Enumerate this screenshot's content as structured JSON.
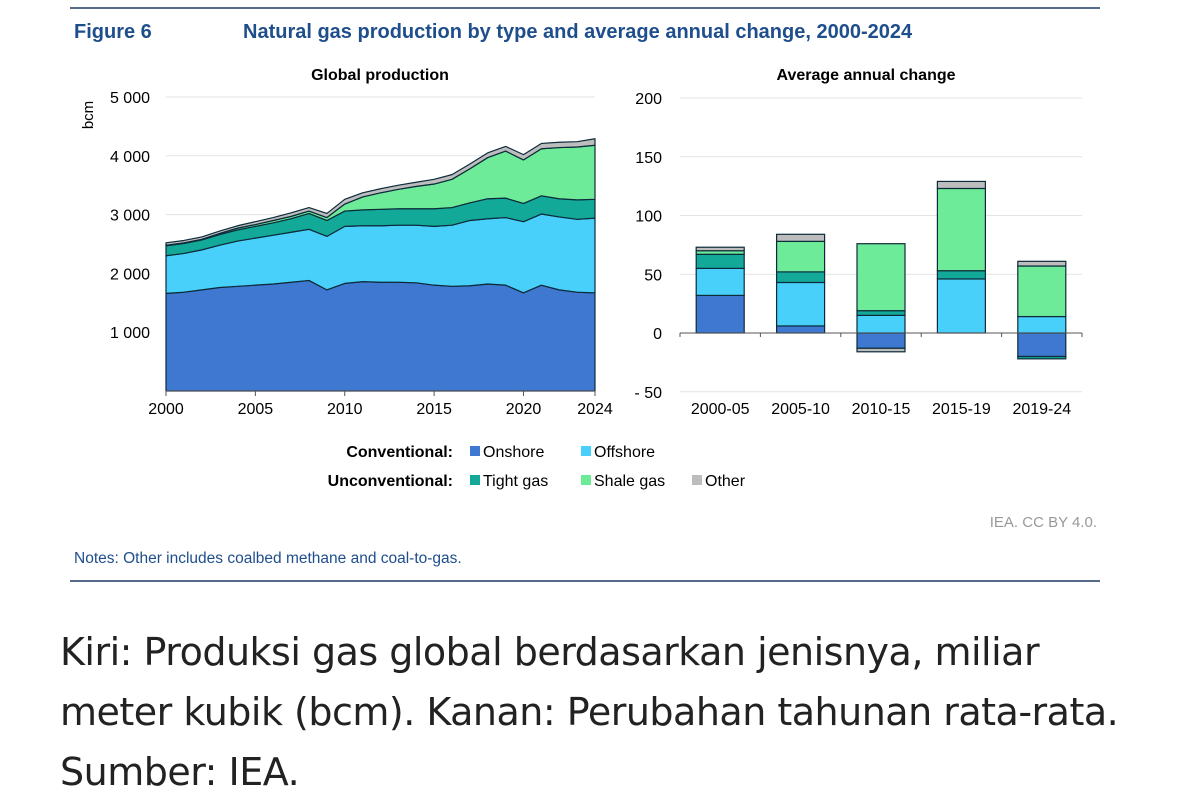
{
  "figure_label": "Figure 6",
  "figure_title": "Natural gas production by type and average annual change, 2000-2024",
  "notes": "Notes: Other includes coalbed methane and coal-to-gas.",
  "credit": "IEA. CC BY 4.0.",
  "caption": "Kiri: Produksi gas global berdasarkan jenisnya, miliar meter kubik (bcm). Kanan: Perubahan tahunan rata-rata. Sumber: IEA.",
  "legend": {
    "group1": "Conventional:",
    "group2": "Unconventional:",
    "items": [
      {
        "name": "Onshore",
        "color": "#3f78d0"
      },
      {
        "name": "Offshore",
        "color": "#48d0fa"
      },
      {
        "name": "Tight gas",
        "color": "#12a999"
      },
      {
        "name": "Shale gas",
        "color": "#6deb98"
      },
      {
        "name": "Other",
        "color": "#bdbdbd"
      }
    ]
  },
  "chart_data": [
    {
      "type": "area",
      "title": "Global production",
      "ylabel": "bcm",
      "ylim": [
        0,
        5000
      ],
      "yticks": [
        "1 000",
        "2 000",
        "3 000",
        "4 000",
        "5 000"
      ],
      "ytick_values": [
        1000,
        2000,
        3000,
        4000,
        5000
      ],
      "xticks": [
        "2000",
        "2005",
        "2010",
        "2015",
        "2020",
        "2024"
      ],
      "xtick_values": [
        2000,
        2005,
        2010,
        2015,
        2020,
        2024
      ],
      "x": [
        2000,
        2001,
        2002,
        2003,
        2004,
        2005,
        2006,
        2007,
        2008,
        2009,
        2010,
        2011,
        2012,
        2013,
        2014,
        2015,
        2016,
        2017,
        2018,
        2019,
        2020,
        2021,
        2022,
        2023,
        2024
      ],
      "series": [
        {
          "name": "Onshore",
          "values": [
            1660,
            1680,
            1720,
            1760,
            1780,
            1800,
            1820,
            1850,
            1880,
            1720,
            1830,
            1860,
            1850,
            1850,
            1840,
            1800,
            1780,
            1790,
            1820,
            1800,
            1670,
            1800,
            1720,
            1680,
            1670
          ]
        },
        {
          "name": "Offshore",
          "values": [
            640,
            660,
            680,
            720,
            770,
            800,
            830,
            850,
            870,
            910,
            970,
            950,
            960,
            970,
            980,
            1000,
            1040,
            1110,
            1110,
            1150,
            1210,
            1210,
            1240,
            1240,
            1270
          ]
        },
        {
          "name": "Tight gas",
          "values": [
            170,
            170,
            170,
            180,
            190,
            200,
            210,
            230,
            270,
            270,
            260,
            270,
            280,
            280,
            280,
            300,
            300,
            300,
            340,
            330,
            310,
            310,
            310,
            330,
            320
          ]
        },
        {
          "name": "Shale gas",
          "values": [
            10,
            10,
            10,
            20,
            30,
            30,
            40,
            40,
            40,
            50,
            120,
            220,
            280,
            330,
            380,
            420,
            480,
            580,
            700,
            800,
            740,
            800,
            870,
            900,
            920
          ]
        },
        {
          "name": "Other",
          "values": [
            40,
            40,
            40,
            40,
            40,
            50,
            50,
            60,
            60,
            70,
            80,
            70,
            70,
            70,
            70,
            80,
            80,
            80,
            80,
            80,
            90,
            90,
            90,
            90,
            110
          ]
        }
      ]
    },
    {
      "type": "bar",
      "stacked": true,
      "title": "Average annual change",
      "ylim": [
        -50,
        200
      ],
      "yticks": [
        "- 50",
        "0",
        "50",
        "100",
        "150",
        "200"
      ],
      "ytick_values": [
        -50,
        0,
        50,
        100,
        150,
        200
      ],
      "categories": [
        "2000-05",
        "2005-10",
        "2010-15",
        "2015-19",
        "2019-24"
      ],
      "series": [
        {
          "name": "Onshore",
          "values": [
            32,
            6,
            -13,
            0,
            -20
          ]
        },
        {
          "name": "Offshore",
          "values": [
            23,
            37,
            15,
            46,
            14
          ]
        },
        {
          "name": "Tight gas",
          "values": [
            12,
            9,
            4,
            7,
            -2
          ]
        },
        {
          "name": "Shale gas",
          "values": [
            3,
            26,
            57,
            70,
            43
          ]
        },
        {
          "name": "Other",
          "values": [
            3,
            6,
            -3,
            6,
            4
          ]
        }
      ]
    }
  ]
}
